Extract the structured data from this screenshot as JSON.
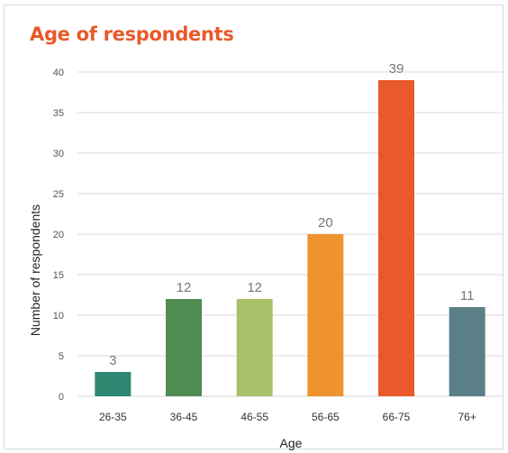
{
  "chart_data": {
    "type": "bar",
    "title": "Age of respondents",
    "xlabel": "Age",
    "ylabel": "Number of respondents",
    "categories": [
      "26-35",
      "36-45",
      "46-55",
      "56-65",
      "66-75",
      "76+"
    ],
    "values": [
      3,
      12,
      12,
      20,
      39,
      11
    ],
    "data_labels": [
      "3",
      "12",
      "12",
      "20",
      "39",
      "11"
    ],
    "colors": [
      "#2e8770",
      "#4f8c52",
      "#a9c26a",
      "#ef932f",
      "#e8592b",
      "#5b7f86"
    ],
    "ylim": [
      0,
      40
    ],
    "yticks": [
      "0",
      "5",
      "10",
      "15",
      "20",
      "25",
      "30",
      "35",
      "40"
    ],
    "grid": true,
    "legend": "none"
  },
  "colors": {
    "title": "#e8592b",
    "gridline": "#d9d9d9"
  }
}
